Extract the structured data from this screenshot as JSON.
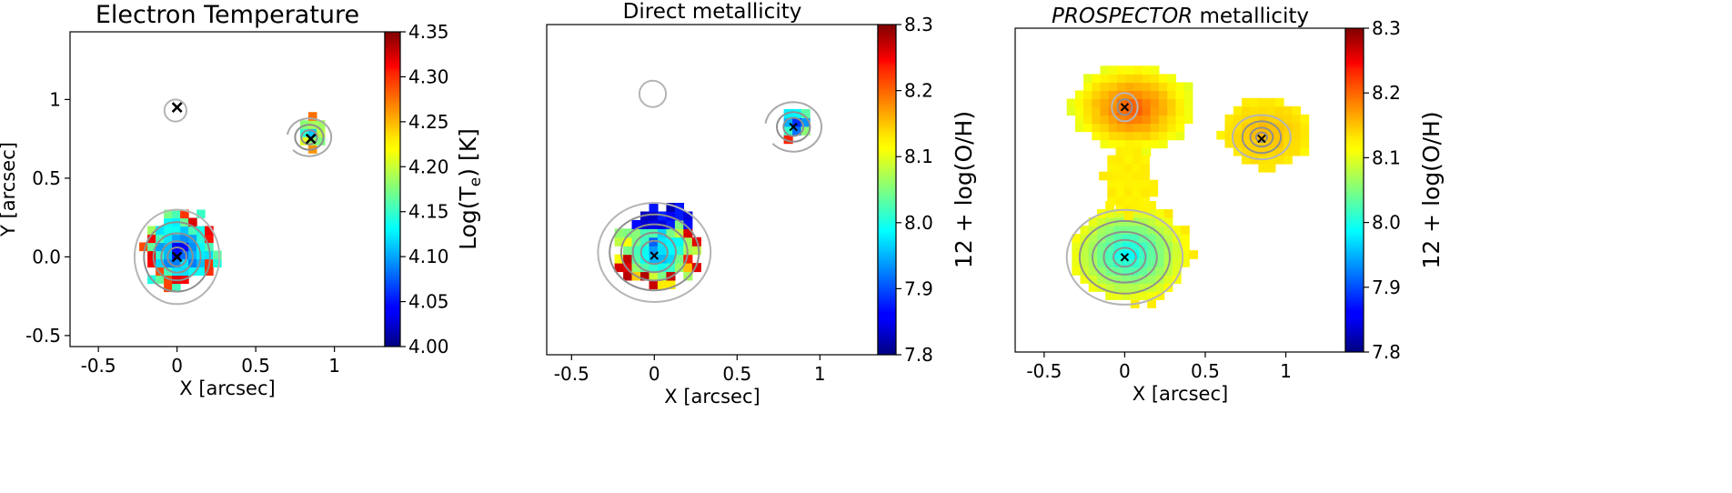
{
  "chart_data": [
    {
      "type": "heatmap",
      "title": "Electron Temperature",
      "title_emphasis": "",
      "title_rest": "",
      "xlabel": "X [arcsec]",
      "ylabel": "Y [arcsec]",
      "xlim": [
        -0.68,
        1.32
      ],
      "ylim": [
        -0.57,
        1.43
      ],
      "xticks": [
        -0.5,
        0,
        0.5,
        1
      ],
      "xtick_labels": [
        "-0.5",
        "0",
        "0.5",
        "1"
      ],
      "yticks": [
        -0.5,
        0,
        0.5,
        1
      ],
      "ytick_labels": [
        "-0.5",
        "0.0",
        "0.5",
        "1"
      ],
      "colorbar": {
        "label": "Log(T",
        "label_sub": "e",
        "label_end": ") [K]",
        "range": [
          4.0,
          4.35
        ],
        "ticks": [
          4.0,
          4.05,
          4.1,
          4.15,
          4.2,
          4.25,
          4.3,
          4.35
        ],
        "tick_labels": [
          "4.00",
          "4.05",
          "4.10",
          "4.15",
          "4.20",
          "4.25",
          "4.30",
          "4.35"
        ],
        "colormap": "jet"
      },
      "markers": [
        {
          "x": 0,
          "y": 0.95
        },
        {
          "x": 0.85,
          "y": 0.75
        },
        {
          "x": 0,
          "y": 0
        }
      ],
      "clumps": [
        {
          "cx": 0,
          "cy": 0.02,
          "rx": 0.24,
          "ry": 0.24,
          "vmin": 4.05,
          "vmax": 4.17,
          "edge": 4.3,
          "seed": 11
        },
        {
          "cx": 0.83,
          "cy": 0.76,
          "rx": 0.1,
          "ry": 0.1,
          "vmin": 4.1,
          "vmax": 4.22,
          "edge": 4.25,
          "seed": 5
        }
      ],
      "contours": [
        {
          "cx": 0,
          "cy": 0.0,
          "rx": [
            0.27,
            0.21,
            0.15,
            0.1,
            0.06
          ],
          "ry": [
            0.3,
            0.22,
            0.15,
            0.1,
            0.06
          ]
        },
        {
          "cx": 0.84,
          "cy": 0.76,
          "rx": [
            0.14,
            0.09,
            0.05
          ],
          "ry": [
            0.12,
            0.08,
            0.045
          ],
          "open": true
        },
        {
          "cx": -0.01,
          "cy": 0.93,
          "rx": [
            0.07
          ],
          "ry": [
            0.07
          ]
        }
      ]
    },
    {
      "type": "heatmap",
      "title": "Direct metallicity",
      "title_emphasis": "",
      "title_rest": "",
      "xlabel": "X [arcsec]",
      "ylabel": "",
      "xlim": [
        -0.65,
        1.35
      ],
      "ylim": [
        -0.62,
        1.38
      ],
      "xticks": [
        -0.5,
        0,
        0.5,
        1
      ],
      "xtick_labels": [
        "-0.5",
        "0",
        "0.5",
        "1"
      ],
      "yticks": [],
      "ytick_labels": [],
      "colorbar": {
        "label": "12 + log(O/H)",
        "label_sub": "",
        "label_end": "",
        "range": [
          7.8,
          8.3
        ],
        "ticks": [
          7.8,
          7.9,
          8.0,
          8.1,
          8.2,
          8.3
        ],
        "tick_labels": [
          "7.8",
          "7.9",
          "8.0",
          "8.1",
          "8.2",
          "8.3"
        ],
        "colormap": "jet"
      },
      "markers": [
        {
          "x": 0,
          "y": -0.02
        },
        {
          "x": 0.84,
          "y": 0.76
        }
      ],
      "clumps": [
        {
          "cx": 0,
          "cy": 0.02,
          "rx": 0.24,
          "ry": 0.24,
          "vmin": 7.92,
          "vmax": 8.1,
          "edge": 8.25,
          "top": 7.82,
          "seed": 21
        },
        {
          "cx": 0.83,
          "cy": 0.76,
          "rx": 0.1,
          "ry": 0.1,
          "vmin": 7.85,
          "vmax": 8.05,
          "edge": 8.2,
          "seed": 9
        }
      ],
      "contours": [
        {
          "cx": 0,
          "cy": 0.0,
          "rx": [
            0.34,
            0.27,
            0.2,
            0.13,
            0.08
          ],
          "ry": [
            0.3,
            0.23,
            0.17,
            0.12,
            0.07
          ]
        },
        {
          "cx": 0.84,
          "cy": 0.76,
          "rx": [
            0.17,
            0.1,
            0.06
          ],
          "ry": [
            0.15,
            0.09,
            0.055
          ],
          "open": true
        },
        {
          "cx": -0.01,
          "cy": 0.96,
          "rx": [
            0.08
          ],
          "ry": [
            0.08
          ]
        }
      ]
    },
    {
      "type": "heatmap",
      "title": "",
      "title_emphasis": "PROSPECTOR",
      "title_rest": " metallicity",
      "xlabel": "X [arcsec]",
      "ylabel": "",
      "xlim": [
        -0.68,
        1.37
      ],
      "ylim": [
        -0.6,
        1.45
      ],
      "xticks": [
        -0.5,
        0,
        0.5,
        1
      ],
      "xtick_labels": [
        "-0.5",
        "0",
        "0.5",
        "1"
      ],
      "yticks": [],
      "ytick_labels": [],
      "colorbar": {
        "label": "12 + log(O/H)",
        "label_sub": "",
        "label_end": "",
        "range": [
          7.8,
          8.3
        ],
        "ticks": [
          7.8,
          7.9,
          8.0,
          8.1,
          8.2,
          8.3
        ],
        "tick_labels": [
          "7.8",
          "7.9",
          "8.0",
          "8.1",
          "8.2",
          "8.3"
        ],
        "colormap": "jet"
      },
      "markers": [
        {
          "x": 0,
          "y": 0.95
        },
        {
          "x": 0.85,
          "y": 0.75
        },
        {
          "x": 0,
          "y": 0.0
        }
      ],
      "clumps": [
        {
          "cx": 0,
          "cy": 0.0,
          "rx": 0.38,
          "ry": 0.32,
          "vmin": 7.98,
          "vmax": 8.12,
          "edge": 8.13,
          "seed": 31,
          "smooth": true
        },
        {
          "cx": 0.02,
          "cy": 0.92,
          "rx": 0.38,
          "ry": 0.28,
          "vmin": 8.2,
          "vmax": 8.1,
          "edge": 8.12,
          "seed": 41,
          "smooth": true
        },
        {
          "cx": 0.85,
          "cy": 0.76,
          "rx": 0.28,
          "ry": 0.22,
          "vmin": 8.15,
          "vmax": 8.12,
          "edge": 8.12,
          "seed": 51,
          "smooth": true
        },
        {
          "cx": 0,
          "cy": 0.45,
          "rx": 0.16,
          "ry": 0.22,
          "vmin": 8.12,
          "vmax": 8.12,
          "edge": 8.12,
          "seed": 61,
          "smooth": true
        }
      ],
      "contours": [
        {
          "cx": 0,
          "cy": 0.0,
          "rx": [
            0.36,
            0.28,
            0.2,
            0.13,
            0.07
          ],
          "ry": [
            0.3,
            0.23,
            0.16,
            0.11,
            0.06
          ]
        },
        {
          "cx": 0.85,
          "cy": 0.76,
          "rx": [
            0.18,
            0.12,
            0.07,
            0.035
          ],
          "ry": [
            0.14,
            0.1,
            0.06,
            0.03
          ]
        },
        {
          "cx": 0.0,
          "cy": 0.95,
          "rx": [
            0.08,
            0.045
          ],
          "ry": [
            0.09,
            0.05
          ]
        }
      ]
    }
  ]
}
